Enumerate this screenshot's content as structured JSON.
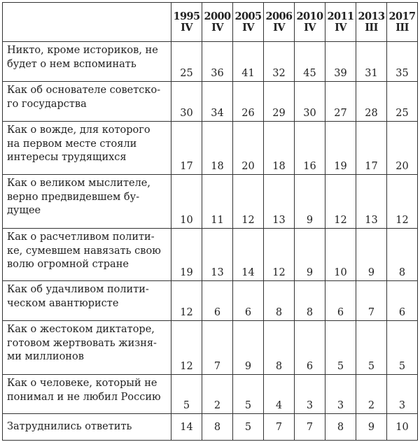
{
  "columns": [
    {
      "year": "1995",
      "quarter": "IV"
    },
    {
      "year": "2000",
      "quarter": "IV"
    },
    {
      "year": "2005",
      "quarter": "IV"
    },
    {
      "year": "2006",
      "quarter": "IV"
    },
    {
      "year": "2010",
      "quarter": "IV"
    },
    {
      "year": "2011",
      "quarter": "IV"
    },
    {
      "year": "2013",
      "quarter": "III"
    },
    {
      "year": "2017",
      "quarter": "III"
    }
  ],
  "rows": [
    {
      "label": "Никто, кроме историков, не\nбудет о нем вспоминать",
      "values": [
        "25",
        "36",
        "41",
        "32",
        "45",
        "39",
        "31",
        "35"
      ]
    },
    {
      "label": "Как об основателе советско-\nго государства",
      "values": [
        "30",
        "34",
        "26",
        "29",
        "30",
        "27",
        "28",
        "25"
      ]
    },
    {
      "label": "Как о вожде, для которого\nна первом месте стояли\nинтересы трудящихся",
      "values": [
        "17",
        "18",
        "20",
        "18",
        "16",
        "19",
        "17",
        "20"
      ]
    },
    {
      "label": "Как о великом мыслителе,\nверно предвидевшем бу-\nдущее",
      "values": [
        "10",
        "11",
        "12",
        "13",
        "9",
        "12",
        "13",
        "12"
      ]
    },
    {
      "label": "Как о расчетливом полити-\nке, сумевшем навязать свою\nволю огромной стране",
      "values": [
        "19",
        "13",
        "14",
        "12",
        "9",
        "10",
        "9",
        "8"
      ]
    },
    {
      "label": "Как об удачливом полити-\nческом авантюристе",
      "values": [
        "12",
        "6",
        "6",
        "8",
        "8",
        "6",
        "7",
        "6"
      ]
    },
    {
      "label": "Как о жестоком диктаторе,\nготовом жертвовать жизня-\nми миллионов",
      "values": [
        "12",
        "7",
        "9",
        "8",
        "6",
        "5",
        "5",
        "5"
      ]
    },
    {
      "label": "Как о человеке, который не\nпонимал и не любил Россию",
      "values": [
        "5",
        "2",
        "5",
        "4",
        "3",
        "3",
        "2",
        "3"
      ]
    },
    {
      "label": "Затруднились ответить",
      "values": [
        "14",
        "8",
        "5",
        "7",
        "7",
        "8",
        "9",
        "10"
      ]
    }
  ]
}
